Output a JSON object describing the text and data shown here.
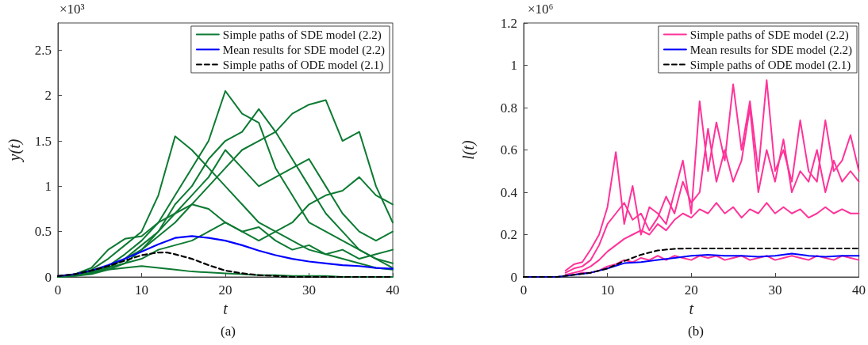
{
  "chart_data": [
    {
      "type": "line",
      "title": "(a)",
      "xlabel": "t",
      "ylabel": "y(t)",
      "annotations": [
        "×10³"
      ],
      "xlim": [
        0,
        40
      ],
      "xticks": [
        0,
        10,
        20,
        30,
        40
      ],
      "ylim": [
        0,
        2.8
      ],
      "yticks": [
        0,
        0.5,
        1,
        1.5,
        2,
        2.5
      ],
      "legend": "top right",
      "marker": "none",
      "series": [
        {
          "name": "Simple paths of SDE model (2.2)",
          "color": "#0c7a32",
          "x": [
            0,
            2,
            4,
            6,
            8,
            10,
            12,
            14,
            16,
            18,
            20,
            22,
            24,
            26,
            28,
            30,
            32,
            34,
            36,
            38,
            40
          ],
          "values": [
            0,
            0.02,
            0.06,
            0.12,
            0.25,
            0.4,
            0.6,
            0.9,
            1.2,
            1.5,
            2.05,
            1.8,
            1.7,
            1.2,
            0.9,
            0.6,
            0.5,
            0.4,
            0.3,
            0.2,
            0.15
          ]
        },
        {
          "color": "#0c7a32",
          "x": [
            0,
            2,
            4,
            6,
            8,
            10,
            12,
            14,
            16,
            18,
            20,
            22,
            24,
            26,
            28,
            30,
            32,
            34,
            36,
            38,
            40
          ],
          "values": [
            0,
            0.01,
            0.04,
            0.1,
            0.2,
            0.3,
            0.45,
            0.6,
            0.8,
            1.0,
            1.2,
            1.4,
            1.5,
            1.6,
            1.8,
            1.9,
            1.95,
            1.5,
            1.6,
            1.0,
            0.6
          ]
        },
        {
          "color": "#0c7a32",
          "x": [
            0,
            2,
            4,
            6,
            8,
            10,
            12,
            14,
            16,
            18,
            20,
            22,
            24,
            26,
            28,
            30,
            32,
            34,
            36,
            38,
            40
          ],
          "values": [
            0,
            0.02,
            0.05,
            0.1,
            0.15,
            0.3,
            0.5,
            0.8,
            1.0,
            1.3,
            1.5,
            1.6,
            1.85,
            1.6,
            1.3,
            1.0,
            0.7,
            0.5,
            0.3,
            0.2,
            0.1
          ]
        },
        {
          "color": "#0c7a32",
          "x": [
            0,
            2,
            4,
            6,
            8,
            10,
            12,
            14,
            16,
            18,
            20,
            22,
            24,
            26,
            28,
            30,
            32,
            34,
            36,
            38,
            40
          ],
          "values": [
            0,
            0.02,
            0.08,
            0.2,
            0.35,
            0.5,
            0.9,
            1.55,
            1.4,
            1.2,
            1.0,
            0.8,
            0.6,
            0.5,
            0.4,
            0.3,
            0.25,
            0.2,
            0.15,
            0.1,
            0.08
          ]
        },
        {
          "color": "#0c7a32",
          "x": [
            0,
            2,
            4,
            6,
            8,
            10,
            12,
            14,
            16,
            18,
            20,
            22,
            24,
            26,
            28,
            30,
            32,
            34,
            36,
            38,
            40
          ],
          "values": [
            0,
            0.01,
            0.03,
            0.08,
            0.15,
            0.2,
            0.3,
            0.35,
            0.4,
            0.5,
            0.6,
            0.5,
            0.4,
            0.5,
            0.6,
            0.8,
            0.9,
            0.95,
            1.1,
            0.9,
            0.8
          ]
        },
        {
          "color": "#0c7a32",
          "x": [
            0,
            2,
            4,
            6,
            8,
            10,
            12,
            14,
            16,
            18,
            20,
            22,
            24,
            26,
            28,
            30,
            32,
            34,
            36,
            38,
            40
          ],
          "values": [
            0,
            0.02,
            0.05,
            0.08,
            0.1,
            0.12,
            0.1,
            0.08,
            0.06,
            0.05,
            0.04,
            0.03,
            0.02,
            0.02,
            0.01,
            0.01,
            0.01,
            0,
            0,
            0,
            0
          ]
        },
        {
          "color": "#0c7a32",
          "x": [
            0,
            2,
            4,
            6,
            8,
            10,
            12,
            14,
            16,
            18,
            20,
            22,
            24,
            26,
            28,
            30,
            32,
            34,
            36,
            38,
            40
          ],
          "values": [
            0,
            0.03,
            0.1,
            0.3,
            0.42,
            0.45,
            0.6,
            0.7,
            0.8,
            0.75,
            0.6,
            0.5,
            0.55,
            0.4,
            0.3,
            0.35,
            0.25,
            0.3,
            0.2,
            0.25,
            0.3
          ]
        },
        {
          "color": "#0c7a32",
          "x": [
            0,
            2,
            4,
            6,
            8,
            10,
            12,
            14,
            16,
            18,
            20,
            22,
            24,
            26,
            28,
            30,
            32,
            34,
            36,
            38,
            40
          ],
          "values": [
            0,
            0.02,
            0.05,
            0.1,
            0.2,
            0.35,
            0.5,
            0.7,
            0.9,
            1.1,
            1.4,
            1.2,
            1.0,
            1.1,
            1.2,
            1.3,
            1.0,
            0.7,
            0.5,
            0.4,
            0.5
          ]
        },
        {
          "name": "Mean results for SDE model (2.2)",
          "color": "#0000ff",
          "x": [
            0,
            2,
            4,
            6,
            8,
            10,
            12,
            14,
            16,
            18,
            20,
            22,
            24,
            26,
            28,
            30,
            32,
            34,
            36,
            38,
            40
          ],
          "values": [
            0.01,
            0.03,
            0.07,
            0.13,
            0.2,
            0.28,
            0.36,
            0.43,
            0.45,
            0.43,
            0.4,
            0.35,
            0.29,
            0.24,
            0.2,
            0.17,
            0.15,
            0.13,
            0.12,
            0.1,
            0.09
          ]
        },
        {
          "name": "Simple paths of ODE model (2.1)",
          "color": "#000000",
          "line_style": "dashed",
          "x": [
            0,
            2,
            4,
            6,
            8,
            10,
            12,
            13,
            14,
            16,
            18,
            20,
            22,
            24,
            26,
            28,
            30,
            40
          ],
          "values": [
            0.01,
            0.03,
            0.07,
            0.12,
            0.18,
            0.24,
            0.27,
            0.27,
            0.25,
            0.2,
            0.13,
            0.07,
            0.04,
            0.02,
            0.01,
            0,
            0,
            0
          ]
        }
      ]
    },
    {
      "type": "line",
      "title": "(b)",
      "xlabel": "t",
      "ylabel": "l(t)",
      "annotations": [
        "×10⁶"
      ],
      "xlim": [
        0,
        40
      ],
      "xticks": [
        0,
        10,
        20,
        30,
        40
      ],
      "ylim": [
        0,
        1.2
      ],
      "yticks": [
        0,
        0.2,
        0.4,
        0.6,
        0.8,
        1,
        1.2
      ],
      "legend": "top right",
      "marker": "none",
      "series": [
        {
          "name": "Simple paths of SDE model (2.2)",
          "color": "#ff3399",
          "x": [
            5,
            6,
            7,
            8,
            9,
            10,
            11,
            12,
            13,
            14,
            15,
            16,
            17,
            18,
            19,
            20,
            21,
            22,
            23,
            24,
            25,
            26,
            27,
            28,
            29,
            30,
            31,
            32,
            33,
            34,
            35,
            36,
            37,
            38,
            39,
            40
          ],
          "values": [
            0.03,
            0.06,
            0.07,
            0.13,
            0.2,
            0.33,
            0.59,
            0.25,
            0.43,
            0.2,
            0.33,
            0.3,
            0.25,
            0.4,
            0.55,
            0.3,
            0.83,
            0.5,
            0.73,
            0.55,
            0.91,
            0.6,
            0.83,
            0.5,
            0.93,
            0.5,
            0.6,
            0.45,
            0.74,
            0.5,
            0.45,
            0.74,
            0.5,
            0.55,
            0.67,
            0.5
          ]
        },
        {
          "color": "#ff3399",
          "x": [
            5,
            6,
            7,
            8,
            9,
            10,
            11,
            12,
            13,
            14,
            15,
            16,
            17,
            18,
            19,
            20,
            21,
            22,
            23,
            24,
            25,
            26,
            27,
            28,
            29,
            30,
            31,
            32,
            33,
            34,
            35,
            36,
            37,
            38,
            39,
            40
          ],
          "values": [
            0.02,
            0.04,
            0.05,
            0.08,
            0.15,
            0.25,
            0.3,
            0.35,
            0.27,
            0.3,
            0.22,
            0.28,
            0.38,
            0.3,
            0.45,
            0.35,
            0.4,
            0.7,
            0.45,
            0.6,
            0.45,
            0.55,
            0.8,
            0.4,
            0.6,
            0.45,
            0.65,
            0.4,
            0.5,
            0.45,
            0.6,
            0.4,
            0.55,
            0.45,
            0.5,
            0.45
          ]
        },
        {
          "color": "#ff3399",
          "x": [
            5,
            6,
            7,
            8,
            9,
            10,
            11,
            12,
            13,
            14,
            15,
            16,
            17,
            18,
            19,
            20,
            21,
            22,
            23,
            24,
            25,
            26,
            27,
            28,
            29,
            30,
            31,
            32,
            33,
            34,
            35,
            36,
            37,
            38,
            39,
            40
          ],
          "values": [
            0.01,
            0.02,
            0.03,
            0.05,
            0.08,
            0.12,
            0.15,
            0.18,
            0.2,
            0.22,
            0.2,
            0.25,
            0.22,
            0.27,
            0.3,
            0.28,
            0.32,
            0.3,
            0.35,
            0.3,
            0.33,
            0.28,
            0.32,
            0.3,
            0.35,
            0.3,
            0.33,
            0.3,
            0.32,
            0.28,
            0.3,
            0.33,
            0.3,
            0.32,
            0.3,
            0.3
          ]
        },
        {
          "color": "#ff3399",
          "x": [
            6,
            7,
            8,
            9,
            10,
            11,
            12,
            13,
            14,
            15,
            16,
            17,
            18,
            19,
            20,
            21,
            22,
            23,
            24,
            25,
            26,
            27,
            28,
            29,
            30,
            31,
            32,
            33,
            34,
            35,
            36,
            37,
            38,
            39,
            40
          ],
          "values": [
            0.01,
            0.02,
            0.02,
            0.03,
            0.05,
            0.06,
            0.08,
            0.07,
            0.09,
            0.08,
            0.1,
            0.08,
            0.1,
            0.09,
            0.08,
            0.1,
            0.09,
            0.1,
            0.08,
            0.09,
            0.1,
            0.08,
            0.09,
            0.1,
            0.08,
            0.09,
            0.1,
            0.09,
            0.08,
            0.1,
            0.09,
            0.08,
            0.1,
            0.09,
            0.08
          ]
        },
        {
          "name": "Mean results for SDE model (2.2)",
          "color": "#0000ff",
          "x": [
            0,
            2,
            4,
            6,
            8,
            10,
            12,
            14,
            16,
            18,
            20,
            22,
            24,
            26,
            28,
            30,
            32,
            34,
            36,
            38,
            40
          ],
          "values": [
            0,
            0,
            0,
            0.01,
            0.02,
            0.04,
            0.065,
            0.07,
            0.08,
            0.09,
            0.1,
            0.105,
            0.1,
            0.1,
            0.095,
            0.1,
            0.11,
            0.1,
            0.095,
            0.1,
            0.1
          ]
        },
        {
          "name": "Simple paths of ODE model (2.1)",
          "color": "#000000",
          "line_style": "dashed",
          "x": [
            0,
            2,
            4,
            6,
            8,
            10,
            12,
            14,
            16,
            18,
            20,
            22,
            24,
            26,
            28,
            30,
            32,
            34,
            36,
            38,
            40
          ],
          "values": [
            0,
            0,
            0,
            0.01,
            0.02,
            0.04,
            0.075,
            0.105,
            0.125,
            0.133,
            0.135,
            0.135,
            0.135,
            0.135,
            0.135,
            0.135,
            0.135,
            0.135,
            0.135,
            0.135,
            0.135
          ]
        }
      ]
    }
  ]
}
